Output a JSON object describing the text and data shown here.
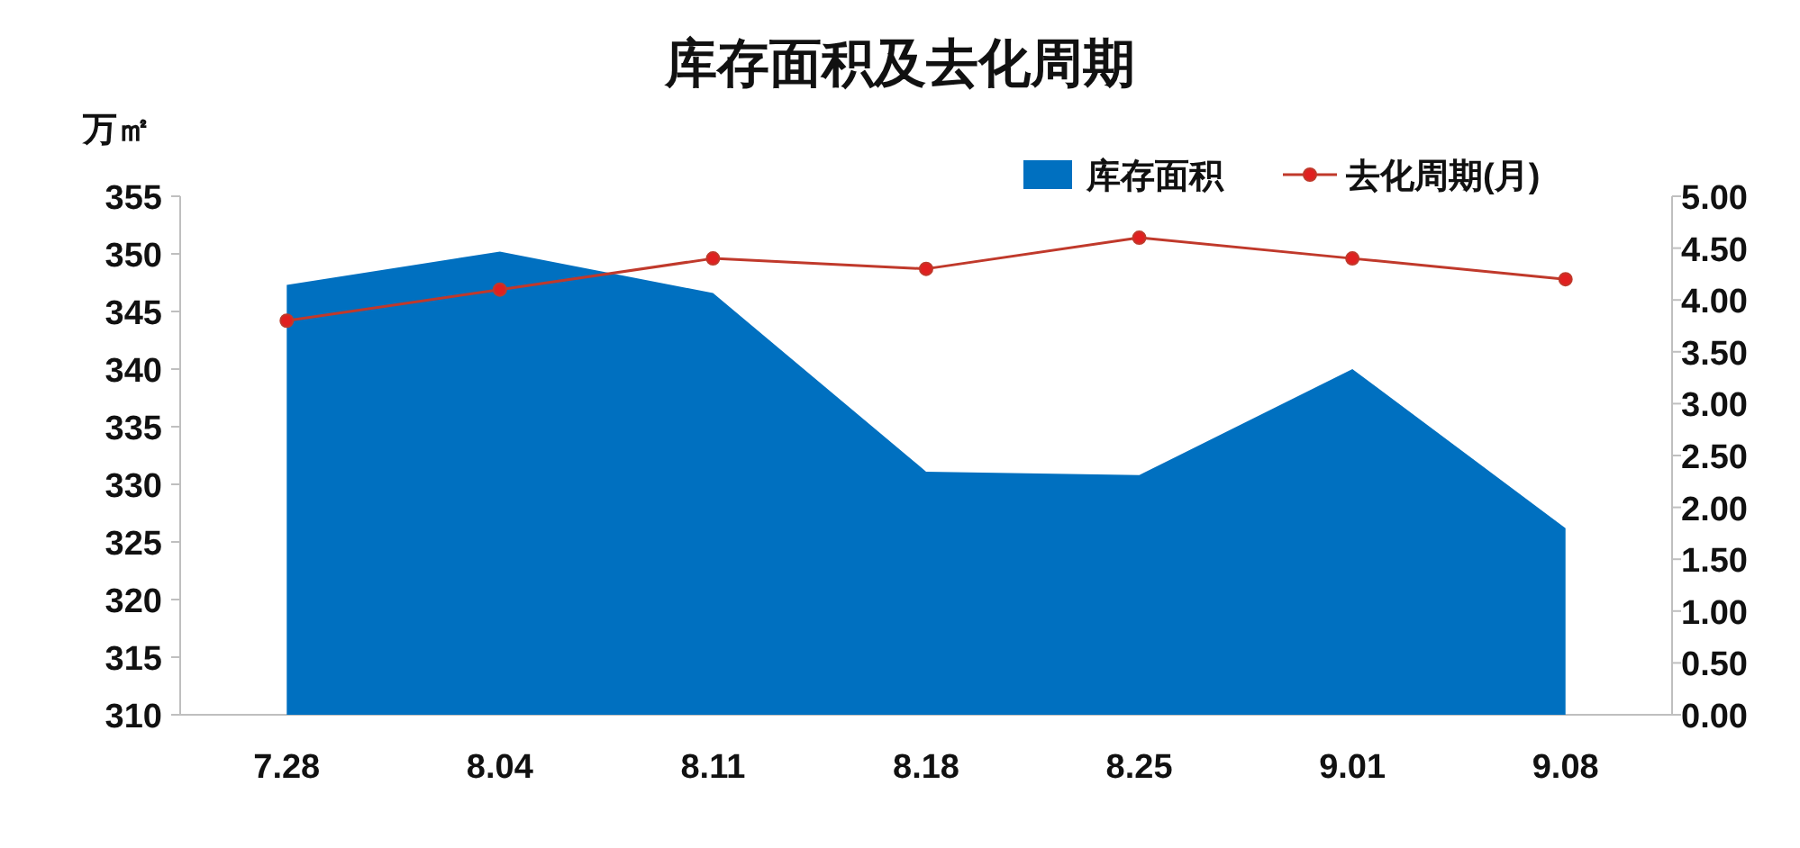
{
  "chart_data": {
    "type": "area",
    "title": "库存面积及去化周期",
    "ylabel": "万㎡",
    "categories": [
      "7.28",
      "8.04",
      "8.11",
      "8.18",
      "8.25",
      "9.01",
      "9.08"
    ],
    "series": [
      {
        "name": "库存面积",
        "type": "area",
        "color": "#0070c0",
        "values": [
          347.3,
          350.2,
          346.6,
          331.1,
          330.8,
          340.0,
          326.2
        ]
      },
      {
        "name": "去化周期(月)",
        "type": "line",
        "axis": "y2",
        "color": "#c0392b",
        "marker": "circle",
        "values": [
          3.8,
          4.1,
          4.4,
          4.3,
          4.6,
          4.4,
          4.2
        ]
      }
    ],
    "ylim": [
      310,
      355
    ],
    "yticks": [
      310,
      315,
      320,
      325,
      330,
      335,
      340,
      345,
      350,
      355
    ],
    "y2lim": [
      0,
      5
    ],
    "y2ticks": [
      {
        "value": 0,
        "label": "0.00"
      },
      {
        "value": 0.5,
        "label": "0.50"
      },
      {
        "value": 1,
        "label": "1.00"
      },
      {
        "value": 1.5,
        "label": "1.50"
      },
      {
        "value": 2,
        "label": "2.00"
      },
      {
        "value": 2.5,
        "label": "2.50"
      },
      {
        "value": 3,
        "label": "3.00"
      },
      {
        "value": 3.5,
        "label": "3.50"
      },
      {
        "value": 4,
        "label": "4.00"
      },
      {
        "value": 4.5,
        "label": "4.50"
      },
      {
        "value": 5,
        "label": "5.00"
      }
    ],
    "legend": "top right"
  }
}
